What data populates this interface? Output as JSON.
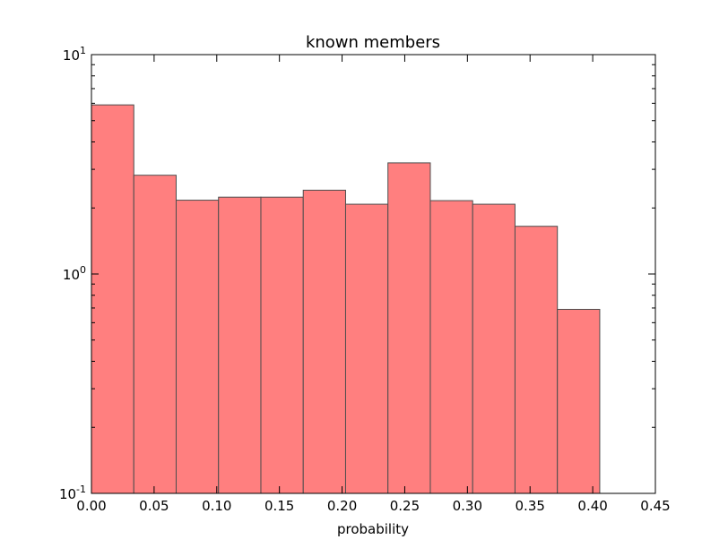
{
  "chart_data": {
    "type": "bar",
    "title": "known members",
    "xlabel": "probability",
    "ylabel": "",
    "xlim": [
      0.0,
      0.45
    ],
    "ylim": [
      0.1,
      10
    ],
    "yscale": "log",
    "grid": false,
    "bar_color": "#ff7f7f",
    "bar_edge_color": "#4d4d4d",
    "bin_edges": [
      0.0,
      0.0338,
      0.0676,
      0.1014,
      0.1352,
      0.169,
      0.2028,
      0.2366,
      0.2704,
      0.3042,
      0.338,
      0.3718,
      0.4056
    ],
    "values": [
      5.9,
      2.82,
      2.17,
      2.24,
      2.24,
      2.41,
      2.08,
      3.21,
      2.16,
      2.08,
      1.65,
      0.69
    ],
    "x_ticks": [
      "0.00",
      "0.05",
      "0.10",
      "0.15",
      "0.20",
      "0.25",
      "0.30",
      "0.35",
      "0.40",
      "0.45"
    ],
    "y_ticks": [
      {
        "base": "10",
        "exp": "1"
      },
      {
        "base": "10",
        "exp": "0"
      },
      {
        "base": "10",
        "exp": "-1"
      }
    ]
  }
}
